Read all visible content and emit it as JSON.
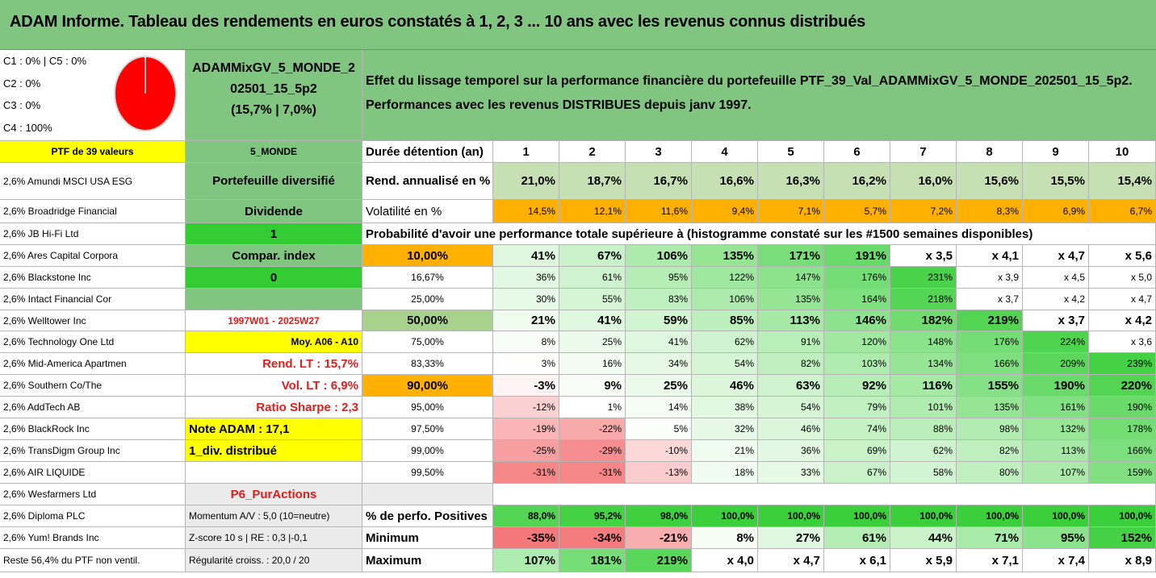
{
  "title": "ADAM Informe. Tableau des rendements en euros constatés à 1, 2, 3 ... 10 ans avec les revenus connus distribués",
  "colors": {
    "title_bg": "#80c680",
    "orange": "#ffb000",
    "yellow": "#ffff00",
    "bright_green": "#33cc33",
    "pale_green": "#c6e0b4",
    "light_gray": "#ebebeb",
    "heatmap_low": "#f4777a",
    "heatmap_high": "#3bcf3b"
  },
  "composition": {
    "line1": "C1 : 0% | C5 : 0%",
    "line2": "C2 : 0%",
    "line3": "C3 : 0%",
    "line4": "C4 : 100%",
    "pie_color": "#ff0000"
  },
  "portfolio": {
    "name_line1": "ADAMMixGV_5_MONDE_2",
    "name_line2": "02501_15_5p2",
    "name_line3": "(15,7% | 7,0%)",
    "count": "PTF de 39 valeurs",
    "code": "5_MONDE"
  },
  "effet": {
    "line1": "Effet du lissage temporel sur la performance financière du portefeuille PTF_39_Val_ADAMMixGV_5_MONDE_202501_15_5p2.",
    "line2": "Performances avec les revenus DISTRIBUES depuis janv 1997."
  },
  "holdings": [
    "2,6% Amundi MSCI USA ESG",
    "2,6% Broadridge Financial",
    "2,6% JB Hi-Fi Ltd",
    "2,6% Ares Capital Corpora",
    "2,6% Blackstone Inc",
    "2,6% Intact Financial Cor",
    "2,6% Welltower Inc",
    "2,6% Technology One Ltd",
    "2,6% Mid-America Apartmen",
    "2,6% Southern Co/The",
    "2,6% AddTech AB",
    "2,6% BlackRock Inc",
    "2,6% TransDigm Group Inc",
    "2,6% AIR LIQUIDE",
    "2,6% Wesfarmers Ltd",
    "2,6% Diploma PLC",
    "2,6% Yum! Brands Inc",
    "Reste 56,4% du PTF non ventil."
  ],
  "info_col": [
    "Portefeuille diversifié",
    "Dividende",
    "1",
    "Compar. index",
    "0",
    "",
    "1997W01 - 2025W27",
    "Moy. A06 - A10",
    "Rend. LT : 15,7%",
    "Vol. LT : 6,9%",
    "Ratio Sharpe : 2,3",
    "Note ADAM : 17,1",
    "1_div. distribué",
    "",
    "P6_PurActions",
    "Momentum A/V : 5,0 (10=neutre)",
    "Z-score 10 s | RE : 0,3 |-0,1",
    "Régularité croiss. : 20,0 / 20"
  ],
  "table": {
    "duration_label": "Durée détention (an)",
    "years": [
      "1",
      "2",
      "3",
      "4",
      "5",
      "6",
      "7",
      "8",
      "9",
      "10"
    ],
    "rend_label": "Rend. annualisé en %",
    "rend": [
      "21,0%",
      "18,7%",
      "16,7%",
      "16,6%",
      "16,3%",
      "16,2%",
      "16,0%",
      "15,6%",
      "15,5%",
      "15,4%"
    ],
    "vol_label": "Volatilité en %",
    "vol": [
      "14,5%",
      "12,1%",
      "11,6%",
      "9,4%",
      "7,1%",
      "5,7%",
      "7,2%",
      "8,3%",
      "6,9%",
      "6,7%"
    ],
    "proba_title": "Probabilité d'avoir une performance totale supérieure à (histogramme constaté sur les #1500 semaines disponibles)",
    "quantiles": [
      "10,00%",
      "16,67%",
      "25,00%",
      "50,00%",
      "75,00%",
      "83,33%",
      "90,00%",
      "95,00%",
      "97,50%",
      "99,00%",
      "99,50%"
    ],
    "rows": [
      [
        "41%",
        "67%",
        "106%",
        "135%",
        "171%",
        "191%",
        "x 3,5",
        "x 4,1",
        "x 4,7",
        "x 5,6"
      ],
      [
        "36%",
        "61%",
        "95%",
        "122%",
        "147%",
        "176%",
        "231%",
        "x 3,9",
        "x 4,5",
        "x 5,0"
      ],
      [
        "30%",
        "55%",
        "83%",
        "106%",
        "135%",
        "164%",
        "218%",
        "x 3,7",
        "x 4,2",
        "x 4,7"
      ],
      [
        "21%",
        "41%",
        "59%",
        "85%",
        "113%",
        "146%",
        "182%",
        "219%",
        "x 3,7",
        "x 4,2"
      ],
      [
        "8%",
        "25%",
        "41%",
        "62%",
        "91%",
        "120%",
        "148%",
        "176%",
        "224%",
        "x 3,6"
      ],
      [
        "3%",
        "16%",
        "34%",
        "54%",
        "82%",
        "103%",
        "134%",
        "166%",
        "209%",
        "239%"
      ],
      [
        "-3%",
        "9%",
        "25%",
        "46%",
        "63%",
        "92%",
        "116%",
        "155%",
        "190%",
        "220%"
      ],
      [
        "-12%",
        "1%",
        "14%",
        "38%",
        "54%",
        "79%",
        "101%",
        "135%",
        "161%",
        "190%"
      ],
      [
        "-19%",
        "-22%",
        "5%",
        "32%",
        "46%",
        "74%",
        "88%",
        "98%",
        "132%",
        "178%"
      ],
      [
        "-25%",
        "-29%",
        "-10%",
        "21%",
        "36%",
        "69%",
        "62%",
        "82%",
        "113%",
        "166%"
      ],
      [
        "-31%",
        "-31%",
        "-13%",
        "18%",
        "33%",
        "67%",
        "58%",
        "80%",
        "107%",
        "159%"
      ]
    ],
    "pos_label": "% de perfo. Positives",
    "pos": [
      "88,0%",
      "95,2%",
      "98,0%",
      "100,0%",
      "100,0%",
      "100,0%",
      "100,0%",
      "100,0%",
      "100,0%",
      "100,0%"
    ],
    "min_label": "Minimum",
    "min": [
      "-35%",
      "-34%",
      "-21%",
      "8%",
      "27%",
      "61%",
      "44%",
      "71%",
      "95%",
      "152%"
    ],
    "max_label": "Maximum",
    "max": [
      "107%",
      "181%",
      "219%",
      "x 4,0",
      "x 4,7",
      "x 6,1",
      "x 5,9",
      "x 7,1",
      "x 7,4",
      "x 8,9"
    ]
  }
}
